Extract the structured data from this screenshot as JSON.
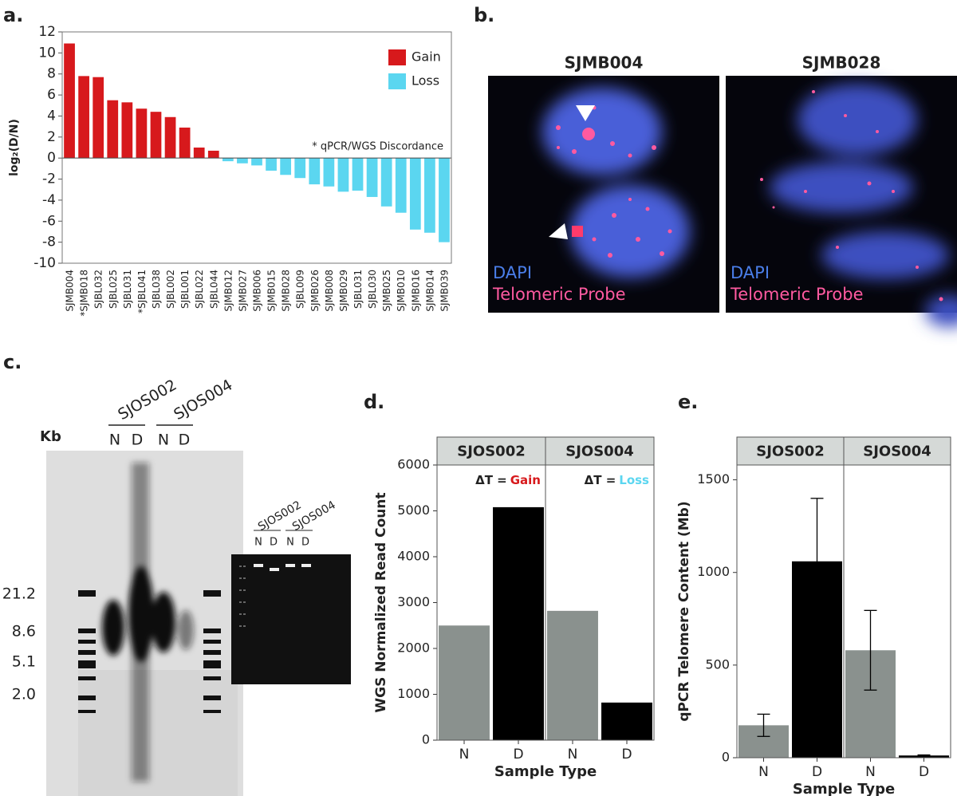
{
  "panel_labels": [
    "a.",
    "b.",
    "c.",
    "d.",
    "e."
  ],
  "chart_data": [
    {
      "type": "bar",
      "ylabel": "log₂(D/N)",
      "annotation": "* qPCR/WGS Discordance",
      "categories": [
        "SJMB004",
        "*SJMB018",
        "SJBL032",
        "SJBL025",
        "SJBL031",
        "*SJBL041",
        "SJBL038",
        "SJBL002",
        "SJBL001",
        "SJBL022",
        "SJBL044",
        "SJMB012",
        "SJMB027",
        "SJMB006",
        "SJMB015",
        "SJMB028",
        "SJBL009",
        "SJMB026",
        "SJMB008",
        "SJMB029",
        "SJBL031",
        "SJBL030",
        "SJMB025",
        "SJMB010",
        "SJMB016",
        "SJMB014",
        "SJMB039"
      ],
      "series": [
        {
          "name": "Gain",
          "color": "#d7191c",
          "values": [
            10.9,
            7.8,
            7.7,
            5.5,
            5.3,
            4.7,
            4.4,
            3.9,
            2.9,
            1.0,
            0.7,
            null,
            null,
            null,
            null,
            null,
            null,
            null,
            null,
            null,
            null,
            null,
            null,
            null,
            null,
            null,
            null
          ]
        },
        {
          "name": "Loss",
          "color": "#5bd6f0",
          "values": [
            null,
            null,
            null,
            null,
            null,
            null,
            null,
            null,
            null,
            null,
            null,
            -0.3,
            -0.5,
            -0.7,
            -1.2,
            -1.6,
            -1.9,
            -2.5,
            -2.7,
            -3.2,
            -3.1,
            -3.7,
            -4.6,
            -5.2,
            -6.8,
            -7.1,
            -8.0
          ]
        }
      ],
      "ylim": [
        -10,
        12
      ],
      "yticks": [
        -10,
        -8,
        -6,
        -4,
        -2,
        0,
        2,
        4,
        6,
        8,
        10,
        12
      ]
    },
    {
      "type": "faceted_bar",
      "ylabel": "WGS Normalized Read Count",
      "xlabel": "Sample Type",
      "colors": [
        "#8a918e",
        "#000000"
      ],
      "facets": [
        {
          "title": "SJOS002",
          "categories": [
            "N",
            "D"
          ],
          "values": [
            2500,
            5080
          ],
          "annotation_prefix": "ΔT =",
          "annotation": "Gain",
          "annotation_color": "#d7191c"
        },
        {
          "title": "SJOS004",
          "categories": [
            "N",
            "D"
          ],
          "values": [
            2820,
            820
          ],
          "annotation_prefix": "ΔT =",
          "annotation": "Loss",
          "annotation_color": "#5bd6f0"
        }
      ],
      "ylim": [
        0,
        6000
      ],
      "yticks": [
        0,
        1000,
        2000,
        3000,
        4000,
        5000,
        6000
      ]
    },
    {
      "type": "faceted_bar",
      "ylabel": "qPCR Telomere Content (Mb)",
      "xlabel": "Sample Type",
      "colors": [
        "#8a918e",
        "#000000"
      ],
      "facets": [
        {
          "title": "SJOS002",
          "categories": [
            "N",
            "D"
          ],
          "values": [
            175,
            1060
          ],
          "errors": [
            60,
            340
          ]
        },
        {
          "title": "SJOS004",
          "categories": [
            "N",
            "D"
          ],
          "values": [
            580,
            12
          ],
          "errors": [
            215,
            3
          ]
        }
      ],
      "ylim": [
        0,
        1580
      ],
      "yticks": [
        0,
        500,
        1000,
        1500
      ]
    }
  ],
  "fish_images": [
    {
      "title": "SJMB004",
      "stain": "DAPI",
      "probe": "Telomeric Probe"
    },
    {
      "title": "SJMB028",
      "stain": "DAPI",
      "probe": "Telomeric Probe"
    }
  ],
  "gel": {
    "samples": [
      "SJOS002",
      "SJOS004"
    ],
    "lanes": [
      "N",
      "D",
      "N",
      "D"
    ],
    "unit": "Kb",
    "markers": [
      "21.2",
      "8.6",
      "5.1",
      "2.0"
    ],
    "inset_samples": [
      "SJOS002",
      "SJOS004"
    ],
    "inset_lanes": [
      "N",
      "D",
      "N",
      "D"
    ]
  }
}
